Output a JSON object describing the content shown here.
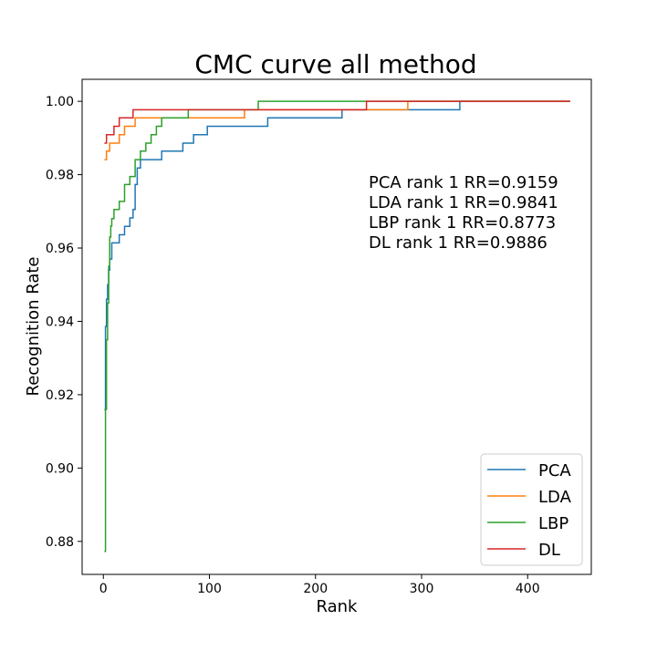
{
  "chart_data": {
    "type": "line",
    "title": "CMC curve all method",
    "xlabel": "Rank",
    "ylabel": "Recognition Rate",
    "xlim": [
      -20,
      460
    ],
    "ylim": [
      0.871,
      1.006
    ],
    "xticks": [
      0,
      100,
      200,
      300,
      400
    ],
    "xtick_labels": [
      "0",
      "100",
      "200",
      "300",
      "400"
    ],
    "yticks": [
      0.88,
      0.9,
      0.92,
      0.94,
      0.96,
      0.98,
      1.0
    ],
    "ytick_labels": [
      "0.88",
      "0.90",
      "0.92",
      "0.94",
      "0.96",
      "0.98",
      "1.00"
    ],
    "grid": false,
    "legend_position": "lower-right",
    "annotations": [
      "PCA rank 1 RR=0.9159",
      "LDA rank 1 RR=0.9841",
      "LBP rank 1 RR=0.8773",
      "DL rank 1 RR=0.9886"
    ],
    "series": [
      {
        "name": "PCA",
        "color": "#1f77b4",
        "x": [
          1,
          2,
          3,
          4,
          5,
          6,
          8,
          10,
          15,
          20,
          25,
          28,
          30,
          32,
          35,
          40,
          55,
          75,
          85,
          98,
          120,
          155,
          200,
          225,
          280,
          336,
          440
        ],
        "y": [
          0.9159,
          0.9386,
          0.946,
          0.95,
          0.954,
          0.957,
          0.9614,
          0.9614,
          0.9636,
          0.9659,
          0.9682,
          0.9705,
          0.9773,
          0.9818,
          0.9841,
          0.9841,
          0.9864,
          0.9886,
          0.9909,
          0.9932,
          0.9932,
          0.9955,
          0.9955,
          0.9977,
          0.9977,
          1.0,
          1.0
        ]
      },
      {
        "name": "LDA",
        "color": "#ff7f0e",
        "x": [
          1,
          3,
          6,
          10,
          15,
          20,
          30,
          60,
          133,
          200,
          287,
          440
        ],
        "y": [
          0.9841,
          0.9864,
          0.9886,
          0.9886,
          0.9909,
          0.9932,
          0.9955,
          0.9955,
          0.9977,
          0.9977,
          1.0,
          1.0
        ]
      },
      {
        "name": "LBP",
        "color": "#2ca02c",
        "x": [
          1,
          2,
          3,
          4,
          5,
          6,
          7,
          8,
          10,
          15,
          20,
          25,
          30,
          35,
          40,
          45,
          50,
          55,
          60,
          80,
          120,
          146,
          200,
          440
        ],
        "y": [
          0.8773,
          0.916,
          0.935,
          0.945,
          0.955,
          0.963,
          0.966,
          0.968,
          0.9705,
          0.9727,
          0.9773,
          0.9795,
          0.9841,
          0.9864,
          0.9886,
          0.9909,
          0.9932,
          0.9955,
          0.9955,
          0.9977,
          0.9977,
          1.0,
          1.0,
          1.0
        ]
      },
      {
        "name": "DL",
        "color": "#d62728",
        "x": [
          1,
          3,
          10,
          15,
          20,
          25,
          28,
          50,
          100,
          150,
          200,
          248,
          300,
          440
        ],
        "y": [
          0.9886,
          0.9909,
          0.9932,
          0.9955,
          0.9955,
          0.9955,
          0.9977,
          0.9977,
          0.9977,
          0.9977,
          0.9977,
          1.0,
          1.0,
          1.0
        ]
      }
    ]
  }
}
